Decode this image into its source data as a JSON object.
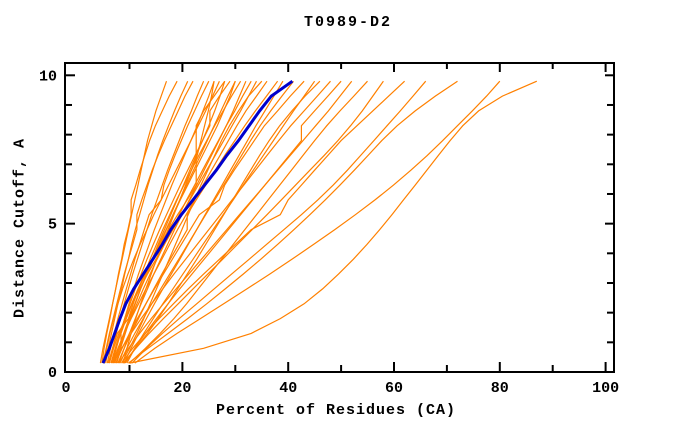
{
  "page": {
    "background": "#FFFFFF"
  },
  "chart_data": {
    "type": "line",
    "title": "T0989-D2",
    "xlabel": "Percent of Residues (CA)",
    "ylabel": "Distance Cutoff, A",
    "xlim": [
      0,
      100
    ],
    "ylim": [
      0,
      10
    ],
    "x_ticks_major": [
      0,
      20,
      40,
      60,
      80,
      100
    ],
    "x_ticks_minor": [
      10,
      30,
      50,
      70,
      90
    ],
    "y_ticks_major": [
      0,
      5,
      10
    ],
    "y_ticks_minor": [
      1,
      2,
      3,
      4,
      6,
      7,
      8,
      9
    ],
    "grid": false,
    "legend_position": "none",
    "colors": {
      "models": "#FF8000",
      "highlight": "#0000CC",
      "axis": "#000000"
    },
    "cutoffs": [
      0.3,
      0.8,
      1.3,
      1.8,
      2.3,
      2.8,
      3.3,
      3.8,
      4.3,
      4.8,
      5.3,
      5.8,
      6.3,
      6.8,
      7.3,
      7.8,
      8.3,
      8.8,
      9.3,
      9.8
    ],
    "highlight_series": {
      "name": "highlighted-model",
      "color": "#0000CC",
      "percents": [
        5.0,
        6.2,
        7.2,
        8.2,
        9.3,
        10.8,
        12.6,
        14.4,
        16.2,
        17.8,
        19.8,
        22.0,
        24.2,
        26.4,
        28.4,
        30.6,
        32.6,
        34.6,
        36.8,
        40.8
      ]
    },
    "series": [
      {
        "percents": [
          4.5,
          5.0,
          5.6,
          6.2,
          6.8,
          7.4,
          8.0,
          8.6,
          9.2,
          9.8,
          10.4,
          11.0,
          11.6,
          12.2,
          12.8,
          13.4,
          14.2,
          15.0,
          16.0,
          17.0
        ]
      },
      {
        "percents": [
          4.8,
          5.2,
          5.7,
          6.3,
          6.8,
          7.4,
          7.9,
          8.5,
          9.0,
          9.7,
          10.3,
          10.3,
          11.2,
          12.0,
          12.9,
          13.8,
          14.9,
          16.2,
          17.5,
          19.0
        ]
      },
      {
        "percents": [
          5.5,
          6.0,
          6.6,
          7.2,
          7.8,
          8.5,
          9.1,
          9.8,
          10.4,
          11.1,
          11.9,
          12.7,
          13.5,
          14.4,
          15.3,
          16.3,
          17.4,
          18.5,
          19.7,
          21.0
        ]
      },
      {
        "percents": [
          5.0,
          5.6,
          6.2,
          6.9,
          7.6,
          8.3,
          9.0,
          9.8,
          10.6,
          11.4,
          11.4,
          12.3,
          13.3,
          14.3,
          15.4,
          16.6,
          17.9,
          19.2,
          20.5,
          22.0
        ]
      },
      {
        "percents": [
          6.2,
          6.8,
          7.5,
          8.2,
          9.0,
          9.8,
          10.6,
          11.5,
          12.4,
          13.3,
          14.2,
          15.2,
          16.2,
          17.2,
          18.3,
          19.4,
          20.5,
          21.7,
          22.8,
          24.0
        ]
      },
      {
        "percents": [
          5.8,
          6.4,
          7.1,
          7.8,
          8.6,
          9.4,
          10.2,
          11.0,
          11.9,
          12.8,
          13.7,
          16.0,
          16.5,
          17.5,
          18.6,
          19.8,
          21.0,
          22.3,
          23.6,
          25.0
        ]
      },
      {
        "percents": [
          6.8,
          7.5,
          8.3,
          9.1,
          9.9,
          10.8,
          11.7,
          12.7,
          13.7,
          14.7,
          15.8,
          16.9,
          18.0,
          19.2,
          20.4,
          21.6,
          22.8,
          23.9,
          25.0,
          26.0
        ]
      },
      {
        "percents": [
          5.2,
          5.7,
          6.3,
          7.0,
          7.8,
          8.7,
          9.7,
          10.8,
          12.0,
          13.3,
          14.6,
          16.0,
          17.4,
          18.8,
          20.2,
          21.6,
          23.0,
          24.4,
          25.7,
          27.0
        ]
      },
      {
        "percents": [
          7.5,
          8.3,
          9.2,
          10.1,
          11.1,
          12.1,
          13.2,
          14.3,
          15.4,
          16.6,
          17.8,
          19.0,
          20.2,
          21.4,
          22.6,
          23.8,
          25.0,
          26.1,
          27.1,
          28.0
        ]
      },
      {
        "percents": [
          6.5,
          7.3,
          8.2,
          9.1,
          10.1,
          11.1,
          12.2,
          13.3,
          14.5,
          15.7,
          17.0,
          18.3,
          19.6,
          21.0,
          22.4,
          23.8,
          25.2,
          25.2,
          27.0,
          29.0
        ]
      },
      {
        "percents": [
          7.0,
          7.9,
          8.9,
          9.9,
          11.0,
          12.1,
          13.3,
          14.5,
          15.7,
          17.0,
          18.3,
          19.6,
          21.0,
          22.4,
          23.8,
          25.2,
          26.6,
          27.8,
          29.0,
          30.0
        ]
      },
      {
        "percents": [
          6.0,
          6.8,
          7.7,
          9.8,
          10.7,
          11.7,
          12.8,
          13.9,
          15.1,
          16.3,
          17.6,
          18.9,
          20.3,
          21.7,
          23.1,
          24.6,
          26.1,
          27.7,
          29.3,
          31.0
        ]
      },
      {
        "percents": [
          8.0,
          9.0,
          10.0,
          11.1,
          12.2,
          13.4,
          14.6,
          15.9,
          17.2,
          18.5,
          19.9,
          21.3,
          22.7,
          24.1,
          25.5,
          26.9,
          28.3,
          29.6,
          30.8,
          32.0
        ]
      },
      {
        "percents": [
          7.2,
          8.1,
          9.1,
          10.2,
          11.4,
          12.6,
          13.9,
          15.2,
          16.6,
          18.0,
          19.4,
          20.8,
          22.3,
          23.8,
          25.3,
          26.8,
          28.3,
          29.9,
          31.4,
          33.0
        ]
      },
      {
        "percents": [
          8.5,
          10.0,
          11.4,
          12.7,
          13.9,
          15.1,
          16.3,
          17.5,
          18.7,
          19.9,
          21.1,
          22.3,
          23.5,
          24.8,
          26.1,
          27.4,
          28.9,
          30.6,
          32.5,
          35.0
        ]
      },
      {
        "percents": [
          6.8,
          7.8,
          9.0,
          10.3,
          11.7,
          13.1,
          14.6,
          16.1,
          17.6,
          19.1,
          20.7,
          22.3,
          23.9,
          25.5,
          27.1,
          28.7,
          30.3,
          32.0,
          34.0,
          36.0
        ]
      },
      {
        "percents": [
          7.8,
          9.0,
          10.3,
          11.7,
          13.1,
          14.6,
          16.1,
          17.7,
          19.3,
          20.9,
          20.9,
          22.6,
          24.4,
          26.2,
          28.0,
          29.9,
          31.8,
          33.8,
          35.9,
          38.0
        ]
      },
      {
        "percents": [
          9.0,
          10.3,
          11.7,
          13.2,
          14.7,
          16.3,
          17.9,
          19.5,
          21.1,
          22.7,
          24.3,
          25.9,
          27.5,
          29.1,
          30.7,
          32.3,
          33.9,
          35.6,
          37.3,
          39.0
        ]
      },
      {
        "percents": [
          8.2,
          9.5,
          11.0,
          12.6,
          14.2,
          15.9,
          17.6,
          19.3,
          21.0,
          22.7,
          24.4,
          26.1,
          27.8,
          29.5,
          31.2,
          32.9,
          34.7,
          36.7,
          38.8,
          41.0
        ]
      },
      {
        "percents": [
          7.4,
          8.6,
          10.0,
          11.5,
          13.1,
          14.7,
          16.4,
          18.1,
          19.8,
          21.5,
          23.2,
          27.0,
          28.0,
          29.8,
          31.7,
          33.6,
          35.5,
          38.0,
          40.4,
          43.0
        ]
      },
      {
        "percents": [
          9.5,
          11.0,
          12.7,
          14.5,
          16.3,
          18.2,
          20.1,
          22.0,
          23.9,
          25.8,
          27.7,
          29.6,
          31.5,
          33.4,
          35.3,
          37.2,
          39.1,
          41.0,
          43.0,
          45.0
        ]
      },
      {
        "percents": [
          8.8,
          11.2,
          13.4,
          15.4,
          17.3,
          19.1,
          20.9,
          22.7,
          24.4,
          26.1,
          27.8,
          29.5,
          31.2,
          32.9,
          34.6,
          36.4,
          38.4,
          40.7,
          43.2,
          46.0
        ]
      },
      {
        "percents": [
          7.0,
          8.5,
          10.3,
          12.2,
          14.2,
          16.3,
          18.4,
          20.6,
          22.8,
          25.0,
          27.2,
          29.4,
          31.6,
          33.8,
          36.0,
          38.2,
          40.5,
          43.0,
          45.5,
          48.0
        ]
      },
      {
        "percents": [
          9.2,
          11.0,
          13.0,
          15.1,
          17.3,
          19.5,
          21.8,
          24.1,
          26.4,
          28.7,
          31.0,
          33.3,
          35.6,
          37.9,
          40.2,
          42.5,
          42.5,
          45.0,
          47.5,
          50.0
        ]
      },
      {
        "percents": [
          8.0,
          9.8,
          11.9,
          14.1,
          16.4,
          18.8,
          21.2,
          23.6,
          26.0,
          28.4,
          30.8,
          33.2,
          35.6,
          38.0,
          40.4,
          42.8,
          45.2,
          47.6,
          49.8,
          52.0
        ]
      },
      {
        "percents": [
          10.0,
          13.0,
          15.8,
          18.4,
          20.8,
          23.0,
          25.2,
          27.4,
          29.6,
          31.8,
          34.0,
          36.2,
          38.4,
          40.6,
          42.8,
          45.0,
          47.3,
          49.8,
          52.4,
          55.0
        ]
      },
      {
        "percents": [
          9.0,
          11.2,
          13.7,
          16.4,
          19.2,
          22.0,
          24.8,
          27.6,
          30.4,
          33.2,
          36.0,
          38.7,
          41.4,
          44.1,
          46.8,
          49.4,
          51.8,
          54.0,
          56.0,
          58.0
        ]
      },
      {
        "percents": [
          8.5,
          10.6,
          13.0,
          15.6,
          18.3,
          21.1,
          24.0,
          27.0,
          30.0,
          33.0,
          38.5,
          40.0,
          42.5,
          45.0,
          47.5,
          50.0,
          53.0,
          56.0,
          59.0,
          62.0
        ]
      },
      {
        "percents": [
          10.5,
          13.2,
          16.2,
          19.4,
          22.7,
          26.0,
          29.3,
          32.6,
          35.9,
          39.2,
          42.5,
          45.6,
          48.5,
          51.2,
          53.7,
          56.2,
          58.7,
          61.2,
          63.6,
          66.0
        ]
      },
      {
        "percents": [
          9.8,
          13.5,
          17.3,
          21.0,
          24.6,
          28.1,
          31.5,
          34.8,
          38.0,
          41.1,
          44.1,
          47.0,
          49.8,
          52.5,
          55.1,
          57.7,
          60.6,
          64.0,
          67.8,
          72.0
        ]
      },
      {
        "percents": [
          11.0,
          14.8,
          19.0,
          23.4,
          27.8,
          32.2,
          36.5,
          40.7,
          44.8,
          48.8,
          52.7,
          56.4,
          59.9,
          63.2,
          66.3,
          69.2,
          72.0,
          74.8,
          77.5,
          80.0
        ]
      },
      {
        "percents": [
          10.0,
          24.0,
          33.0,
          38.5,
          43.0,
          46.5,
          49.5,
          52.3,
          54.9,
          57.3,
          59.6,
          61.8,
          64.0,
          66.2,
          68.4,
          70.6,
          73.0,
          76.0,
          80.5,
          87.0
        ]
      },
      {
        "percents": [
          6.6,
          7.4,
          8.3,
          9.3,
          10.4,
          11.6,
          12.9,
          14.3,
          15.8,
          17.4,
          19.1,
          20.9,
          22.6,
          22.6,
          22.6,
          22.6,
          22.6,
          24.0,
          26.0,
          28.0
        ]
      },
      {
        "percents": [
          6.2,
          7.0,
          8.0,
          9.2,
          10.5,
          11.9,
          13.4,
          15.0,
          16.6,
          18.2,
          19.8,
          21.4,
          23.0,
          24.6,
          26.2,
          27.8,
          29.4,
          31.0,
          32.5,
          34.0
        ]
      },
      {
        "percents": [
          7.6,
          8.4,
          8.4,
          9.4,
          10.5,
          11.7,
          13.0,
          14.3,
          15.6,
          16.9,
          18.2,
          19.5,
          20.8,
          22.1,
          23.4,
          24.7,
          26.0,
          27.3,
          28.6,
          30.0
        ]
      },
      {
        "percents": [
          8.8,
          9.5,
          10.3,
          11.2,
          12.1,
          13.1,
          14.1,
          15.1,
          16.2,
          17.3,
          18.4,
          19.5,
          20.6,
          21.7,
          22.8,
          23.5,
          24.2,
          24.9,
          25.5,
          26.0
        ]
      }
    ]
  }
}
